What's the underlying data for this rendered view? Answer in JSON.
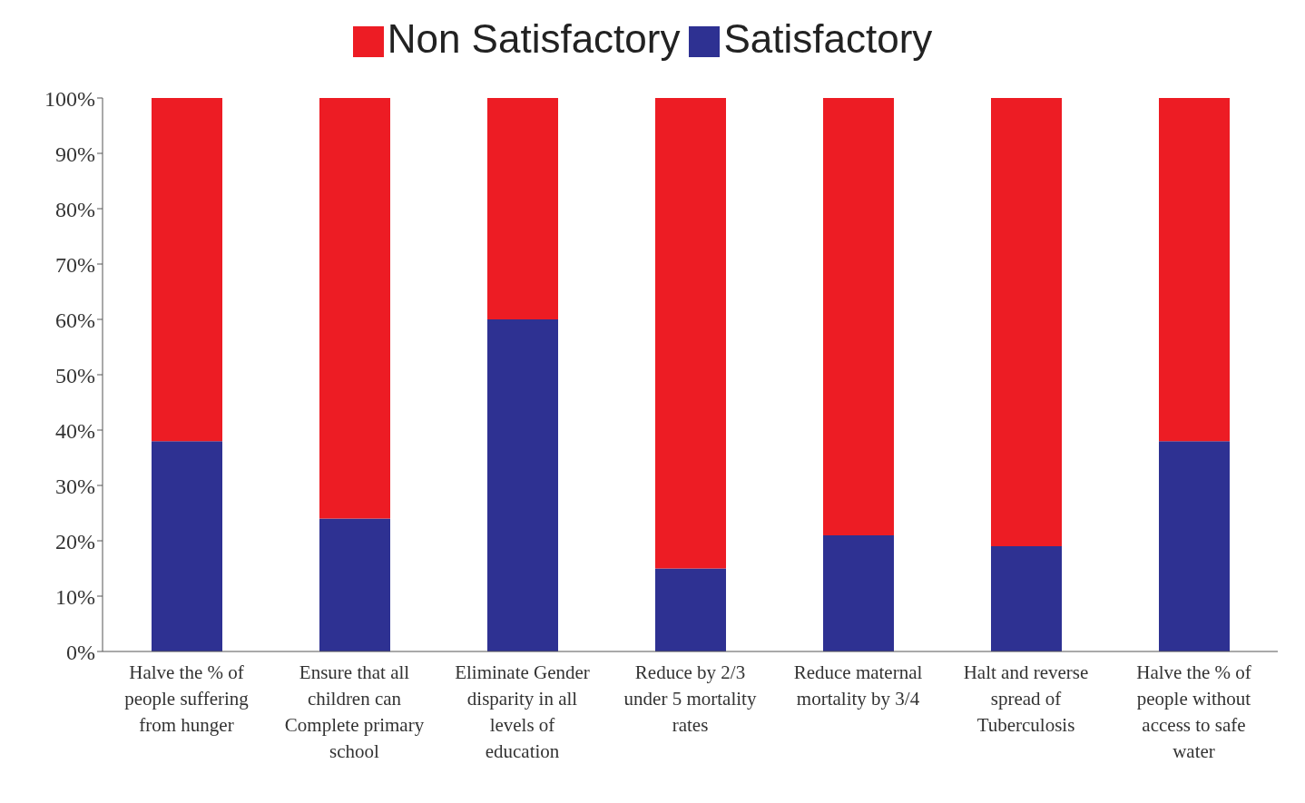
{
  "chart_data": {
    "type": "bar",
    "stacked": true,
    "categories": [
      "Halve the % of people suffering from hunger",
      "Ensure that all children can Complete primary school",
      "Eliminate Gender disparity in all levels of education",
      "Reduce by 2/3 under 5 mortality rates",
      "Reduce maternal mortality by 3/4",
      "Halt and reverse spread of Tuberculosis",
      "Halve the % of people without access to safe water"
    ],
    "series": [
      {
        "name": "Satisfactory",
        "color": "#2e3192",
        "values": [
          38,
          24,
          60,
          15,
          21,
          19,
          38
        ]
      },
      {
        "name": "Non Satisfactory",
        "color": "#ed1c24",
        "values": [
          62,
          76,
          40,
          85,
          79,
          81,
          62
        ]
      }
    ],
    "ylim": [
      0,
      100
    ],
    "yticks": [
      {
        "value": 0,
        "label": "0%"
      },
      {
        "value": 10,
        "label": "10%"
      },
      {
        "value": 20,
        "label": "20%"
      },
      {
        "value": 30,
        "label": "30%"
      },
      {
        "value": 40,
        "label": "40%"
      },
      {
        "value": 50,
        "label": "50%"
      },
      {
        "value": 60,
        "label": "60%"
      },
      {
        "value": 70,
        "label": "70%"
      },
      {
        "value": 80,
        "label": "80%"
      },
      {
        "value": 90,
        "label": "90%"
      },
      {
        "value": 100,
        "label": "100%"
      }
    ],
    "grid": false,
    "legend": "top"
  }
}
